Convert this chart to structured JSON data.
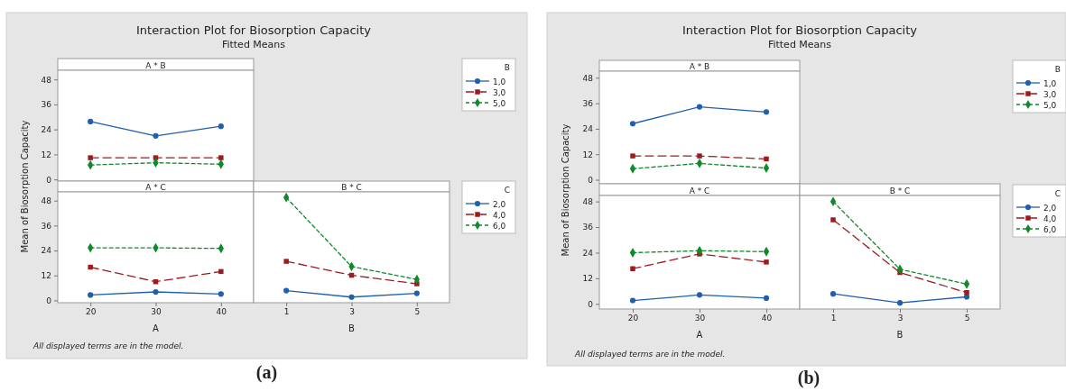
{
  "chart_data": [
    {
      "type": "line",
      "title": "Interaction Plot for Biosorption Capacity",
      "subtitle": "Fitted Means",
      "annotations": [
        "A * B"
      ],
      "ylim": [
        -0.8,
        52.4
      ],
      "yticks": [
        0,
        12,
        24,
        36,
        48
      ],
      "tick_labels": "y",
      "legend": "right",
      "legend_title": "B",
      "grid": false,
      "series": [
        {
          "name": "1,0",
          "color": "#1f5fad",
          "marker": "circle",
          "line_style": "solid",
          "values": [
            27.8,
            20.9,
            25.5
          ]
        },
        {
          "name": "3,0",
          "color": "#9b1b1e",
          "marker": "square",
          "line_style": "dashed",
          "values": [
            10.4,
            10.4,
            10.4
          ]
        },
        {
          "name": "5,0",
          "color": "#0e8a2a",
          "marker": "diamond",
          "line_style": "dotted",
          "values": [
            6.9,
            8.0,
            7.3
          ]
        }
      ]
    },
    {
      "type": "line",
      "title": "A * C",
      "xlabel": "A",
      "ylabel": "Mean of Biosorption Capacity",
      "annotations": [
        "All displayed terms are in the model.",
        "(a)"
      ],
      "categories": [
        "20",
        "30",
        "40"
      ],
      "ylim": [
        -1.1,
        52.2
      ],
      "yticks": [
        0,
        12,
        24,
        36,
        48
      ],
      "grid": false,
      "series": [
        {
          "color": "#1f5fad",
          "marker": "circle",
          "line_style": "solid",
          "values": [
            2.6,
            4.1,
            3.1
          ]
        },
        {
          "color": "#9b1b1e",
          "marker": "square",
          "line_style": "dashed",
          "values": [
            16.0,
            9.0,
            13.9
          ]
        },
        {
          "color": "#0e8a2a",
          "marker": "diamond",
          "line_style": "dotted",
          "values": [
            25.3,
            25.3,
            25.0
          ]
        }
      ]
    },
    {
      "type": "line",
      "title": "B * C",
      "xlabel": "B",
      "categories": [
        "1",
        "3",
        "5"
      ],
      "ylim": [
        -1.1,
        52.2
      ],
      "tick_labels": "x",
      "legend": "right",
      "legend_title": "C",
      "grid": false,
      "series": [
        {
          "name": "2,0",
          "color": "#1f5fad",
          "marker": "circle",
          "line_style": "solid",
          "values": [
            4.7,
            1.6,
            3.4
          ]
        },
        {
          "name": "4,0",
          "color": "#9b1b1e",
          "marker": "square",
          "line_style": "dashed",
          "values": [
            18.8,
            12.1,
            8.0
          ]
        },
        {
          "name": "6,0",
          "color": "#0e8a2a",
          "marker": "diamond",
          "line_style": "dotted",
          "values": [
            49.5,
            16.3,
            10.1
          ]
        }
      ]
    },
    {
      "type": "line",
      "title": "Interaction Plot for Biosorption Capacity",
      "subtitle": "Fitted Means",
      "annotations": [
        "A * B"
      ],
      "ylim": [
        -1.9,
        51.1
      ],
      "yticks": [
        0,
        12,
        24,
        36,
        48
      ],
      "tick_labels": "y",
      "legend": "right",
      "legend_title": "B",
      "grid": false,
      "series": [
        {
          "name": "1,0",
          "color": "#1f5fad",
          "marker": "circle",
          "line_style": "solid",
          "values": [
            26.4,
            34.3,
            31.9
          ]
        },
        {
          "name": "3,0",
          "color": "#9b1b1e",
          "marker": "square",
          "line_style": "dashed",
          "values": [
            11.2,
            11.2,
            9.8
          ]
        },
        {
          "name": "5,0",
          "color": "#0e8a2a",
          "marker": "diamond",
          "line_style": "dotted",
          "values": [
            5.2,
            7.7,
            5.5
          ]
        }
      ]
    },
    {
      "type": "line",
      "title": "A * C",
      "xlabel": "A",
      "ylabel": "Mean of Biosorption Capacity",
      "annotations": [
        "All displayed terms are in the model.",
        "(b)"
      ],
      "categories": [
        "20",
        "30",
        "40"
      ],
      "ylim": [
        -2.4,
        50.8
      ],
      "yticks": [
        0,
        12,
        24,
        36,
        48
      ],
      "grid": false,
      "series": [
        {
          "color": "#1f5fad",
          "marker": "circle",
          "line_style": "solid",
          "values": [
            1.6,
            4.2,
            2.7
          ]
        },
        {
          "color": "#9b1b1e",
          "marker": "square",
          "line_style": "dashed",
          "values": [
            16.5,
            23.4,
            19.6
          ]
        },
        {
          "color": "#0e8a2a",
          "marker": "diamond",
          "line_style": "dotted",
          "values": [
            24.0,
            24.9,
            24.5
          ]
        }
      ]
    },
    {
      "type": "line",
      "title": "B * C",
      "xlabel": "B",
      "categories": [
        "1",
        "3",
        "5"
      ],
      "ylim": [
        -2.4,
        50.8
      ],
      "tick_labels": "x",
      "legend": "right",
      "legend_title": "C",
      "grid": false,
      "series": [
        {
          "name": "2,0",
          "color": "#1f5fad",
          "marker": "circle",
          "line_style": "solid",
          "values": [
            4.7,
            0.5,
            3.3
          ]
        },
        {
          "name": "4,0",
          "color": "#9b1b1e",
          "marker": "square",
          "line_style": "dashed",
          "values": [
            39.4,
            14.7,
            5.3
          ]
        },
        {
          "name": "6,0",
          "color": "#0e8a2a",
          "marker": "diamond",
          "line_style": "dotted",
          "values": [
            48.0,
            16.2,
            9.3
          ]
        }
      ]
    }
  ]
}
